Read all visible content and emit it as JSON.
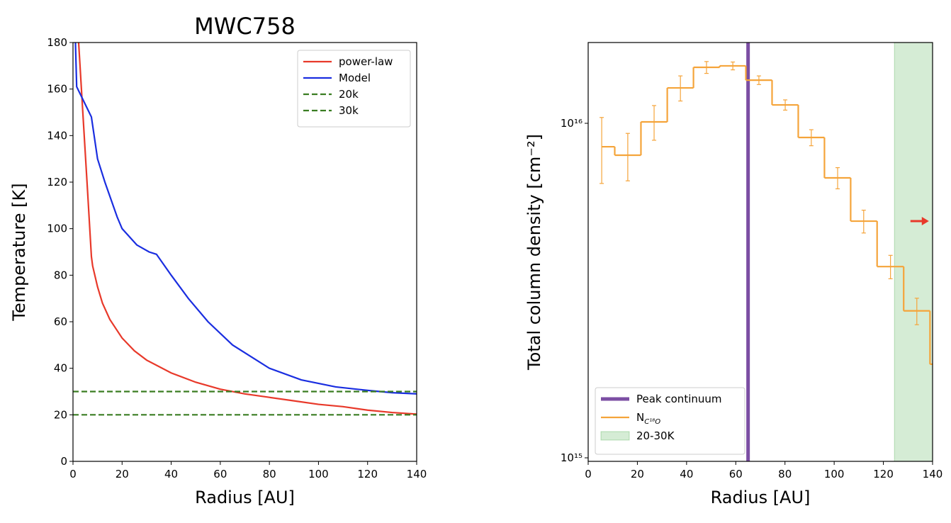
{
  "chart_data": [
    {
      "type": "line",
      "title": "MWC758",
      "xlabel": "Radius [AU]",
      "ylabel": "Temperature [K]",
      "xlim": [
        0,
        140
      ],
      "ylim": [
        0,
        180
      ],
      "xticks": [
        0,
        20,
        40,
        60,
        80,
        100,
        120,
        140
      ],
      "yticks": [
        0,
        20,
        40,
        60,
        80,
        100,
        120,
        140,
        160,
        180
      ],
      "legend": "upper right",
      "series": [
        {
          "name": "power-law",
          "color": "#e8392a",
          "linestyle": "solid",
          "x": [
            2.3,
            4,
            6,
            7.5,
            8,
            10,
            12,
            15,
            20,
            25,
            30,
            40,
            50,
            60,
            70,
            80,
            90,
            100,
            110,
            120,
            130,
            140
          ],
          "values": [
            180,
            150,
            115,
            88,
            84,
            75,
            68,
            61,
            53,
            47.5,
            43.5,
            38,
            34,
            31,
            29,
            27.5,
            26,
            24.5,
            23.5,
            22,
            21,
            20.3
          ]
        },
        {
          "name": "Model",
          "color": "#1a2ee0",
          "linestyle": "solid",
          "x": [
            1,
            1.5,
            7.5,
            10,
            13,
            18,
            20,
            26,
            31,
            34,
            40,
            47,
            55,
            65,
            80,
            93,
            107,
            120,
            130,
            140
          ],
          "values": [
            180,
            161,
            148,
            130,
            120,
            105,
            100,
            93,
            90,
            89,
            80,
            70,
            60,
            50,
            40,
            35,
            32,
            30.5,
            29.5,
            29
          ]
        },
        {
          "name": "20k",
          "color": "#3a7d22",
          "linestyle": "dashed",
          "x": [
            0,
            140
          ],
          "values": [
            20,
            20
          ]
        },
        {
          "name": "30k",
          "color": "#3a7d22",
          "linestyle": "dashed",
          "x": [
            0,
            140
          ],
          "values": [
            30,
            30
          ]
        }
      ]
    },
    {
      "type": "step",
      "xlabel": "Radius [AU]",
      "ylabel": "Total column density [cm⁻²]",
      "xlim": [
        0,
        140
      ],
      "ylim": [
        976000000000000.0,
        1.744e+16
      ],
      "log_y": true,
      "xticks": [
        0,
        20,
        40,
        60,
        80,
        100,
        120,
        140
      ],
      "yticks": [
        {
          "value": 1000000000000000.0,
          "label": "10¹⁵"
        },
        {
          "value": 1e+16,
          "label": "10¹⁶"
        }
      ],
      "legend": "lower left",
      "vlines": [
        {
          "name": "Peak continuum",
          "x": 65,
          "color": "#7b4ea3"
        }
      ],
      "spans": [
        {
          "name": "20-30K",
          "x": [
            124.5,
            140
          ],
          "color": "#2ca02c"
        }
      ],
      "arrows": [
        {
          "x": [
            131,
            138.5
          ],
          "y": 5100000000000000.0,
          "color": "#e8392a"
        }
      ],
      "series": [
        {
          "name": "N",
          "name_subscript": "C¹⁸O",
          "color": "#f5a43a",
          "x": [
            5.5,
            16.1,
            26.8,
            37.5,
            48.1,
            58.8,
            69.4,
            80.1,
            90.7,
            101.4,
            112.0,
            122.9,
            133.6,
            144.3
          ],
          "values": [
            8510000000000000.0,
            8030000000000000.0,
            1.01e+16,
            1.276e+16,
            1.47e+16,
            1.485e+16,
            1.346e+16,
            1.135e+16,
            9070000000000000.0,
            6870000000000000.0,
            5100000000000000.0,
            3730000000000000.0,
            2750000000000000.0,
            1905000000000000.0
          ],
          "errors": [
            1900000000000000.0,
            1300000000000000.0,
            1200000000000000.0,
            1100000000000000.0,
            600000000000000.0,
            400000000000000.0,
            400000000000000.0,
            400000000000000.0,
            500000000000000.0,
            500000000000000.0,
            400000000000000.0,
            300000000000000.0,
            250000000000000.0,
            200000000000000.0
          ]
        }
      ]
    }
  ]
}
